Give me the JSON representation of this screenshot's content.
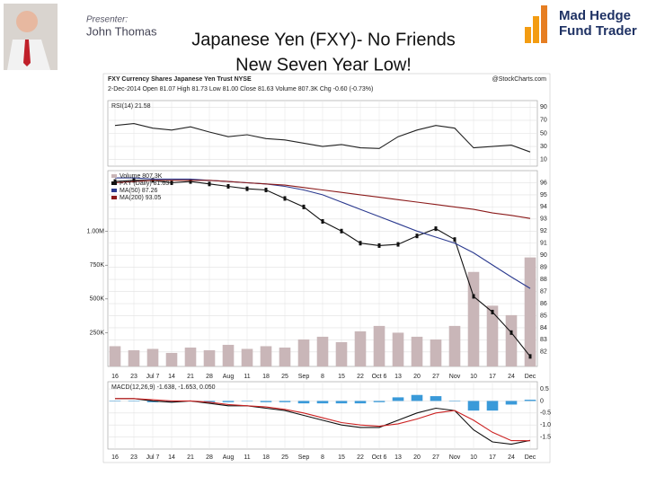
{
  "header": {
    "presenter_label": "Presenter:",
    "presenter_name": "John Thomas",
    "title_line1": "Japanese Yen (FXY)- No Friends",
    "title_line2": "New Seven Year Low!",
    "logo_line1": "Mad Hedge",
    "logo_line2": "Fund Trader",
    "chart_header1": "FXY Currency Shares Japanese Yen Trust NYSE",
    "chart_source": "@StockCharts.com",
    "chart_header2": "2-Dec-2014  Open 81.07  High 81.73  Low 81.00  Close 81.63  Volume 807.3K  Chg -0.60 (-0.73%)"
  },
  "chart_data": [
    {
      "type": "line",
      "title": "RSI(14) 21.58",
      "ylim": [
        0,
        100
      ],
      "yticks": [
        90,
        70,
        50,
        30,
        10
      ],
      "grid": true,
      "series": [
        {
          "name": "RSI(14)",
          "color": "#222222",
          "values": [
            62,
            65,
            58,
            55,
            60,
            52,
            45,
            48,
            42,
            40,
            35,
            30,
            33,
            28,
            27,
            45,
            55,
            62,
            58,
            28,
            30,
            32,
            21.58
          ]
        }
      ]
    },
    {
      "type": "line",
      "ylim": [
        80.8,
        97
      ],
      "yticks": [
        82,
        83,
        84,
        85,
        86,
        87,
        88,
        89,
        90,
        91,
        92,
        93,
        94,
        95,
        96
      ],
      "grid": true,
      "y2lim": [
        0,
        1450000
      ],
      "y2ticks": [
        {
          "value": 250000,
          "label": "250K"
        },
        {
          "value": 500000,
          "label": "500K"
        },
        {
          "value": 750000,
          "label": "750K"
        },
        {
          "value": 1000000,
          "label": "1.00M"
        }
      ],
      "categories": [
        "16",
        "23",
        "Jul 7",
        "14",
        "21",
        "28",
        "Aug",
        "11",
        "18",
        "25",
        "Sep",
        "8",
        "15",
        "22",
        "Oct 6",
        "13",
        "20",
        "27",
        "Nov",
        "10",
        "17",
        "24",
        "Dec"
      ],
      "series": [
        {
          "name": "Volume 807.3K",
          "type": "bar",
          "axis": "y2",
          "color": "#c9b6b8",
          "values": [
            150000,
            120000,
            130000,
            100000,
            140000,
            120000,
            160000,
            130000,
            150000,
            140000,
            200000,
            220000,
            180000,
            260000,
            300000,
            250000,
            220000,
            200000,
            300000,
            700000,
            450000,
            380000,
            807300
          ]
        },
        {
          "name": "FXY (Daily) 81.63",
          "color": "#111111",
          "marker": true,
          "values": [
            96.1,
            96.2,
            96.2,
            96.0,
            96.1,
            95.9,
            95.7,
            95.5,
            95.4,
            94.7,
            94.0,
            92.8,
            92.0,
            91.0,
            90.8,
            90.9,
            91.6,
            92.2,
            91.3,
            86.6,
            85.3,
            83.6,
            81.63
          ]
        },
        {
          "name": "MA(50) 87.26",
          "color": "#2b3a8f",
          "values": [
            96.4,
            96.4,
            96.3,
            96.3,
            96.3,
            96.2,
            96.1,
            96.0,
            95.9,
            95.7,
            95.4,
            95.0,
            94.4,
            93.8,
            93.2,
            92.6,
            92.0,
            91.5,
            91.0,
            90.2,
            89.2,
            88.2,
            87.26
          ]
        },
        {
          "name": "MA(200) 93.05",
          "color": "#8b1a1a",
          "values": [
            96.0,
            96.1,
            96.2,
            96.2,
            96.2,
            96.2,
            96.1,
            96.0,
            95.9,
            95.8,
            95.6,
            95.4,
            95.2,
            95.0,
            94.8,
            94.6,
            94.4,
            94.2,
            94.0,
            93.8,
            93.5,
            93.3,
            93.05
          ]
        }
      ]
    },
    {
      "type": "line",
      "title": "MACD(12,26,9) -1.638, -1.653, 0.050",
      "ylim": [
        -2,
        0.8
      ],
      "yticks": [
        0.5,
        0,
        -0.5,
        {
          "value": -1,
          "label": "-1.0"
        },
        -1.5
      ],
      "grid": true,
      "series": [
        {
          "name": "Histogram",
          "type": "bar",
          "color": "#3a9ad9",
          "values": [
            0,
            0,
            -0.05,
            -0.05,
            0,
            -0.05,
            -0.05,
            0,
            -0.05,
            -0.05,
            -0.1,
            -0.1,
            -0.1,
            -0.1,
            -0.05,
            0.15,
            0.25,
            0.2,
            0,
            -0.4,
            -0.4,
            -0.15,
            0.05
          ]
        },
        {
          "name": "MACD",
          "color": "#111111",
          "values": [
            0.1,
            0.1,
            0,
            -0.05,
            0,
            -0.1,
            -0.2,
            -0.2,
            -0.3,
            -0.4,
            -0.6,
            -0.8,
            -1.0,
            -1.1,
            -1.1,
            -0.8,
            -0.5,
            -0.3,
            -0.4,
            -1.2,
            -1.7,
            -1.8,
            -1.638
          ]
        },
        {
          "name": "Signal",
          "color": "#cc2222",
          "values": [
            0.1,
            0.1,
            0.05,
            0,
            0,
            -0.05,
            -0.15,
            -0.2,
            -0.25,
            -0.35,
            -0.5,
            -0.7,
            -0.9,
            -1.0,
            -1.05,
            -0.95,
            -0.75,
            -0.5,
            -0.4,
            -0.8,
            -1.3,
            -1.65,
            -1.653
          ]
        }
      ]
    }
  ]
}
